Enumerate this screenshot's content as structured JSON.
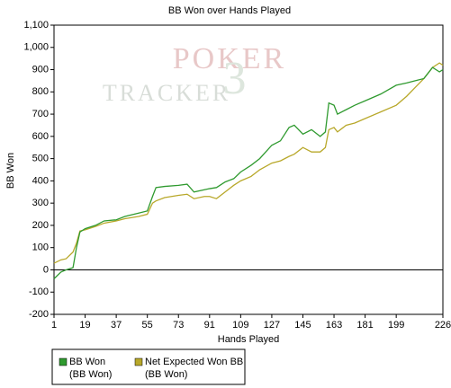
{
  "chart_data": {
    "type": "line",
    "title": "BB Won over Hands Played",
    "xlabel": "Hands Played",
    "ylabel": "BB Won",
    "watermark": [
      "POKER",
      "TRACKER",
      "3"
    ],
    "x": [
      1,
      5,
      8,
      12,
      14,
      16,
      19,
      25,
      30,
      37,
      42,
      50,
      55,
      58,
      60,
      65,
      73,
      78,
      82,
      88,
      91,
      95,
      100,
      105,
      109,
      115,
      120,
      127,
      132,
      137,
      140,
      145,
      150,
      155,
      158,
      160,
      163,
      165,
      170,
      175,
      181,
      190,
      199,
      205,
      210,
      215,
      220,
      224,
      226
    ],
    "series": [
      {
        "name": "BB Won",
        "unit": "(BB Won)",
        "color": "#2f9a2f",
        "values": [
          -40,
          -10,
          0,
          10,
          100,
          170,
          185,
          200,
          220,
          225,
          240,
          255,
          265,
          330,
          370,
          375,
          380,
          385,
          350,
          360,
          365,
          370,
          395,
          410,
          440,
          470,
          500,
          560,
          580,
          640,
          650,
          610,
          630,
          600,
          620,
          750,
          740,
          700,
          720,
          740,
          760,
          790,
          830,
          840,
          850,
          860,
          910,
          890,
          900
        ]
      },
      {
        "name": "Net Expected Won BB",
        "unit": "(BB Won)",
        "color": "#b8a82a",
        "values": [
          30,
          45,
          50,
          80,
          120,
          175,
          180,
          195,
          210,
          220,
          230,
          240,
          250,
          300,
          310,
          325,
          335,
          340,
          320,
          330,
          330,
          320,
          350,
          380,
          400,
          420,
          450,
          480,
          490,
          510,
          520,
          550,
          530,
          530,
          550,
          630,
          640,
          620,
          650,
          660,
          680,
          710,
          740,
          780,
          820,
          860,
          910,
          930,
          920
        ]
      }
    ],
    "xlim": [
      1,
      226
    ],
    "xticks": [
      1,
      19,
      37,
      55,
      73,
      91,
      109,
      127,
      145,
      163,
      181,
      199,
      226
    ],
    "ylim": [
      -200,
      1100
    ],
    "yticks": [
      -200,
      -100,
      0,
      100,
      200,
      300,
      400,
      500,
      600,
      700,
      800,
      900,
      {
        "value": 1000,
        "label": "1,000"
      },
      {
        "value": 1100,
        "label": "1,100"
      }
    ],
    "grid": false,
    "legend": "bottom-left"
  }
}
